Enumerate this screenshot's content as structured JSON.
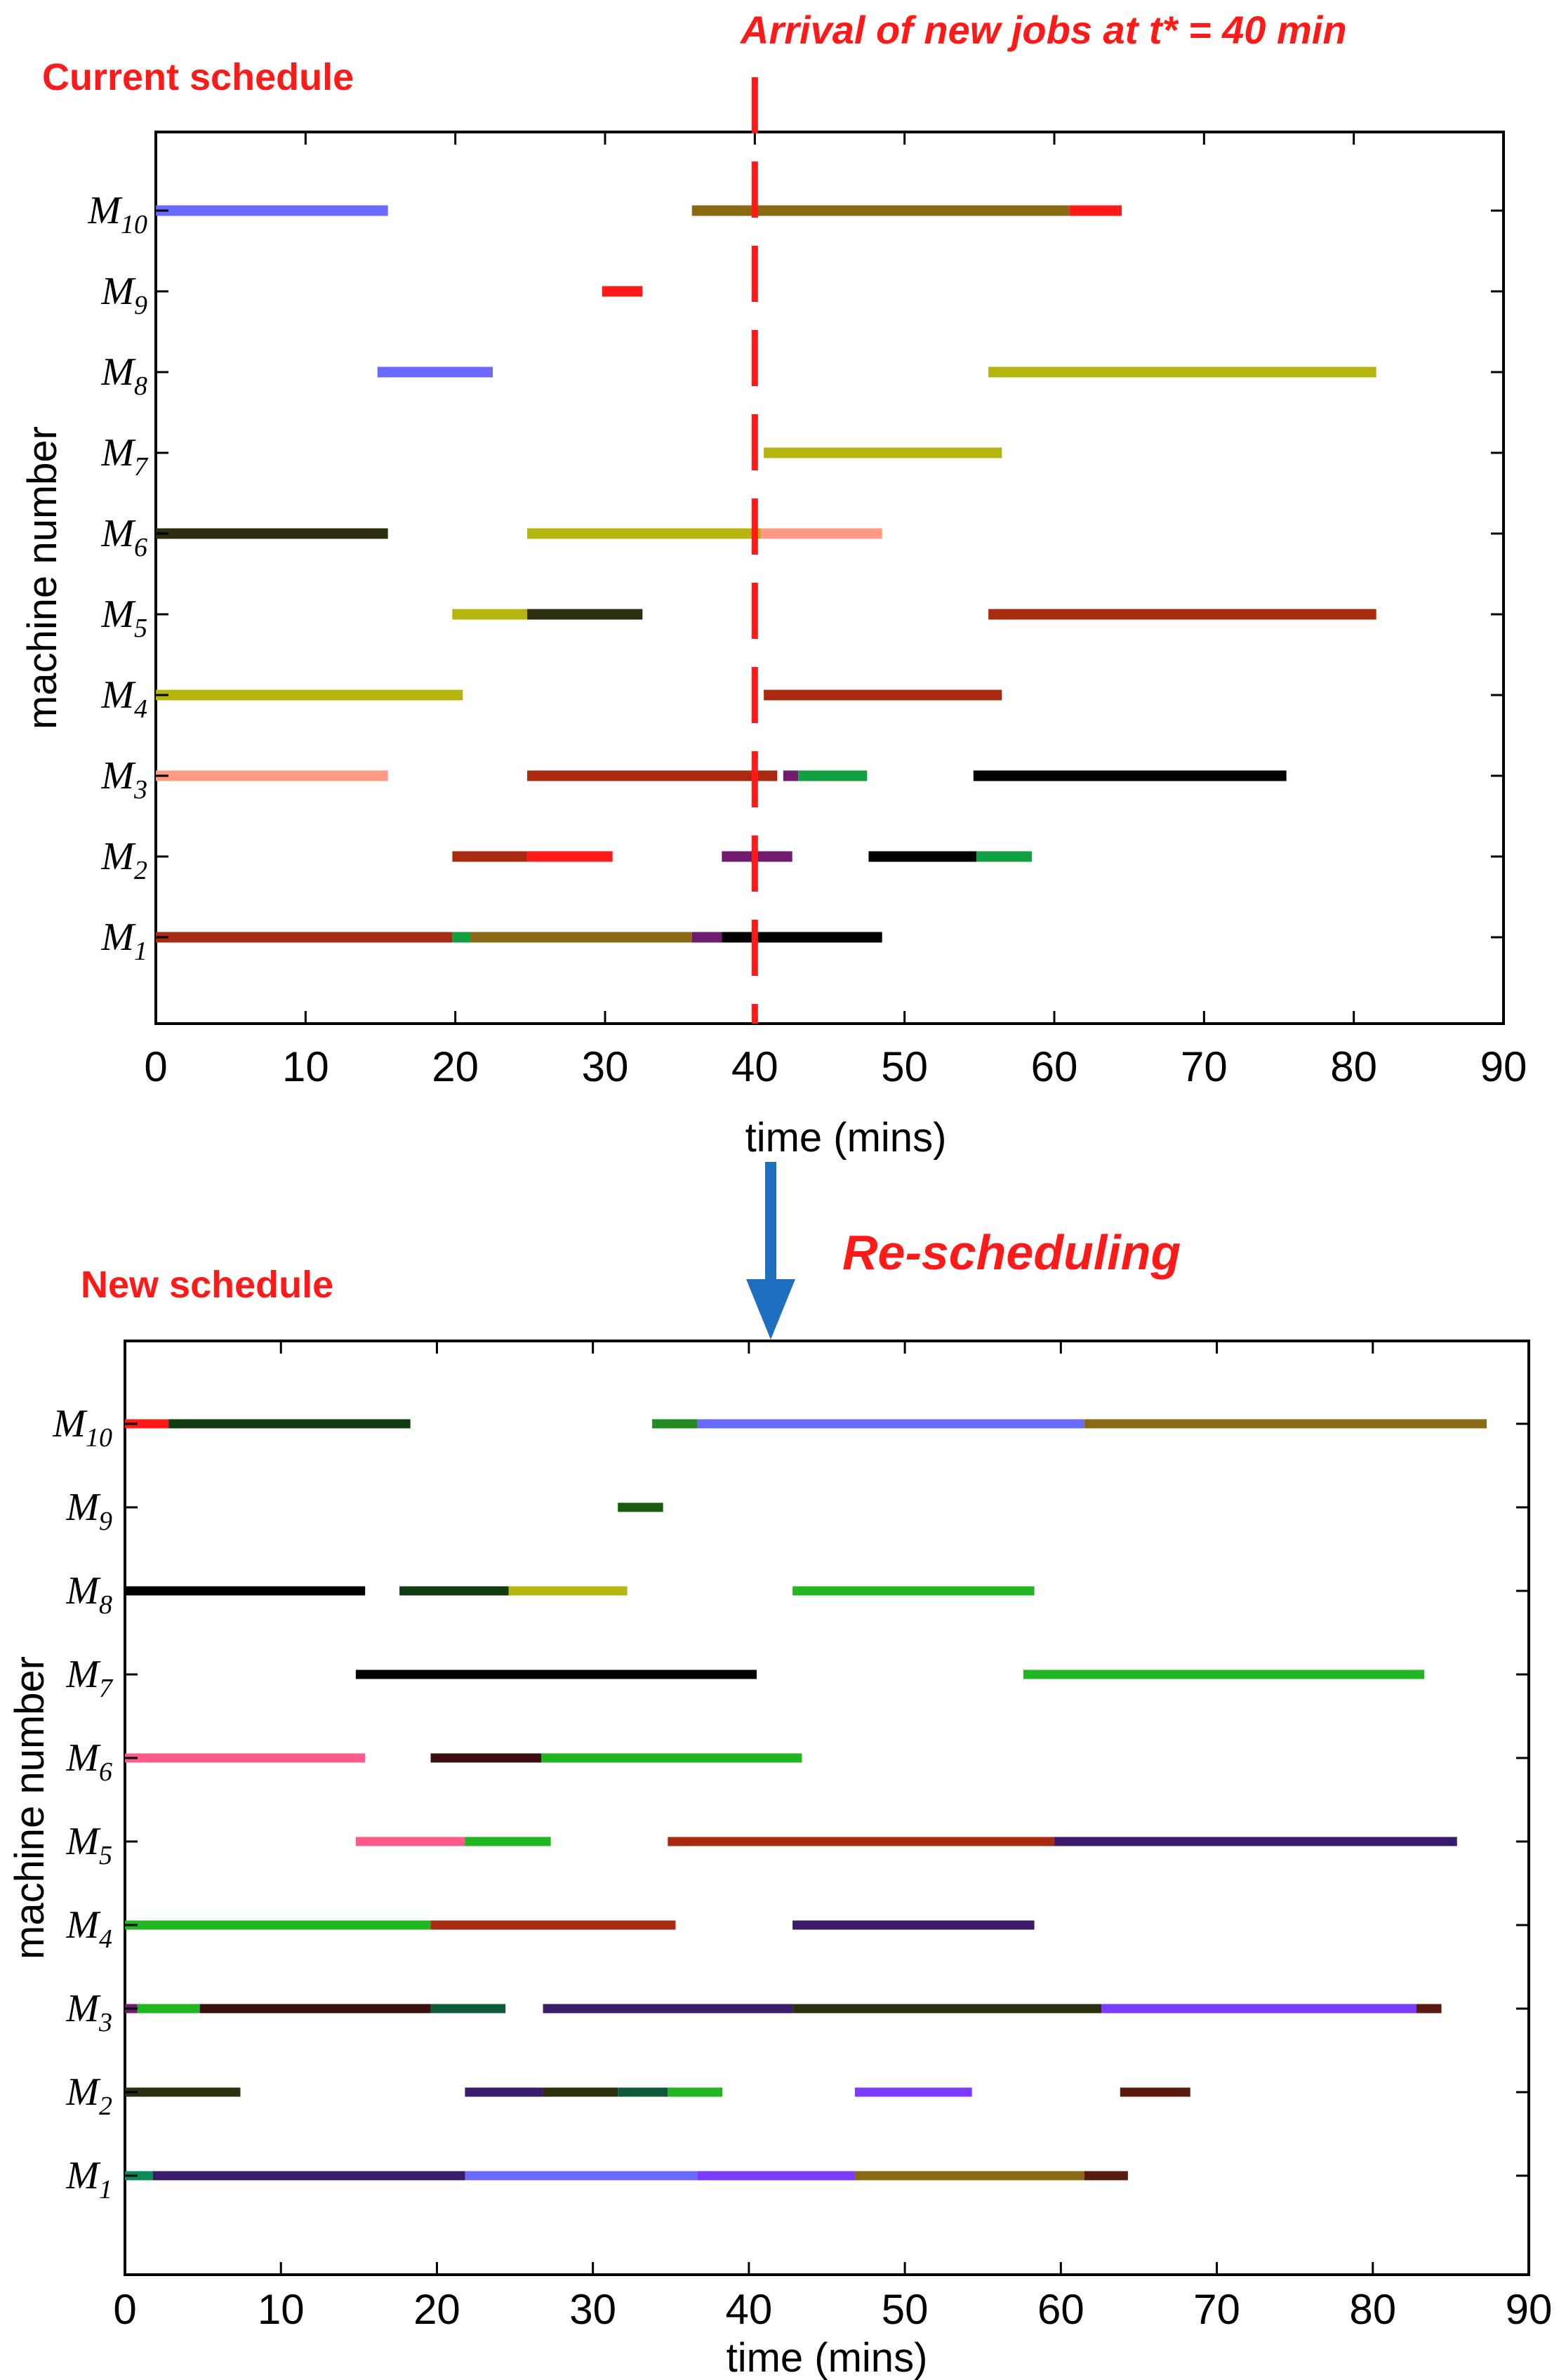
{
  "labels": {
    "current": "Current schedule",
    "arrival": "Arrival of new jobs at t* = 40 min",
    "resched": "Re-scheduling",
    "new": "New schedule"
  },
  "accent_color": "#ff1a1a",
  "arrow_color": "#1f6fc0",
  "chart_data": [
    {
      "type": "gantt",
      "title": "Current schedule",
      "xlabel": "time (mins)",
      "ylabel": "machine number",
      "xlim": [
        0,
        90
      ],
      "xticks": [
        0,
        10,
        20,
        30,
        40,
        50,
        60,
        70,
        80,
        90
      ],
      "machines": [
        "M1",
        "M2",
        "M3",
        "M4",
        "M5",
        "M6",
        "M7",
        "M8",
        "M9",
        "M10"
      ],
      "event_time": 40,
      "bars": [
        {
          "m": 10,
          "s": 0,
          "e": 15.5,
          "c": "#6a6aff"
        },
        {
          "m": 10,
          "s": 35.8,
          "e": 61,
          "c": "#8b6914"
        },
        {
          "m": 10,
          "s": 61,
          "e": 64.5,
          "c": "#ff1a1a"
        },
        {
          "m": 9,
          "s": 29.8,
          "e": 32.5,
          "c": "#ff1a1a"
        },
        {
          "m": 8,
          "s": 14.8,
          "e": 22.5,
          "c": "#6a6aff"
        },
        {
          "m": 8,
          "s": 55.6,
          "e": 81.5,
          "c": "#b5b510"
        },
        {
          "m": 7,
          "s": 40.6,
          "e": 56.5,
          "c": "#b5b510"
        },
        {
          "m": 6,
          "s": 0,
          "e": 15.5,
          "c": "#2e2e10"
        },
        {
          "m": 6,
          "s": 24.8,
          "e": 40.4,
          "c": "#b5b510"
        },
        {
          "m": 6,
          "s": 40.4,
          "e": 48.5,
          "c": "#ff9b85"
        },
        {
          "m": 5,
          "s": 19.8,
          "e": 24.8,
          "c": "#b5b510"
        },
        {
          "m": 5,
          "s": 24.8,
          "e": 32.5,
          "c": "#2e2e10"
        },
        {
          "m": 5,
          "s": 55.6,
          "e": 81.5,
          "c": "#a82a10"
        },
        {
          "m": 4,
          "s": 0,
          "e": 20.5,
          "c": "#b5b510"
        },
        {
          "m": 4,
          "s": 40.6,
          "e": 56.5,
          "c": "#a82a10"
        },
        {
          "m": 3,
          "s": 0,
          "e": 15.5,
          "c": "#ff9b85"
        },
        {
          "m": 3,
          "s": 24.8,
          "e": 41.5,
          "c": "#a82a10"
        },
        {
          "m": 3,
          "s": 41.9,
          "e": 42.9,
          "c": "#701a70"
        },
        {
          "m": 3,
          "s": 42.9,
          "e": 47.5,
          "c": "#10a040"
        },
        {
          "m": 3,
          "s": 54.6,
          "e": 75.5,
          "c": "#000000"
        },
        {
          "m": 2,
          "s": 19.8,
          "e": 24.8,
          "c": "#a82a10"
        },
        {
          "m": 2,
          "s": 24.8,
          "e": 30.5,
          "c": "#ff1a1a"
        },
        {
          "m": 2,
          "s": 37.8,
          "e": 42.5,
          "c": "#701a70"
        },
        {
          "m": 2,
          "s": 47.6,
          "e": 54.8,
          "c": "#000000"
        },
        {
          "m": 2,
          "s": 54.8,
          "e": 58.5,
          "c": "#10a040"
        },
        {
          "m": 1,
          "s": 0,
          "e": 19.8,
          "c": "#a82a10"
        },
        {
          "m": 1,
          "s": 19.8,
          "e": 21,
          "c": "#10a040"
        },
        {
          "m": 1,
          "s": 21,
          "e": 35.8,
          "c": "#8b6914"
        },
        {
          "m": 1,
          "s": 35.8,
          "e": 37.8,
          "c": "#701a70"
        },
        {
          "m": 1,
          "s": 37.8,
          "e": 48.5,
          "c": "#000000"
        }
      ]
    },
    {
      "type": "gantt",
      "title": "New schedule",
      "xlabel": "time (mins)",
      "ylabel": "machine number",
      "xlim": [
        0,
        90
      ],
      "xticks": [
        0,
        10,
        20,
        30,
        40,
        50,
        60,
        70,
        80,
        90
      ],
      "machines": [
        "M1",
        "M2",
        "M3",
        "M4",
        "M5",
        "M6",
        "M7",
        "M8",
        "M9",
        "M10"
      ],
      "bars": [
        {
          "m": 10,
          "s": 0,
          "e": 2.8,
          "c": "#ff1a1a"
        },
        {
          "m": 10,
          "s": 2.8,
          "e": 18.3,
          "c": "#103a10"
        },
        {
          "m": 10,
          "s": 33.8,
          "e": 36.7,
          "c": "#228b22"
        },
        {
          "m": 10,
          "s": 36.7,
          "e": 61.5,
          "c": "#6a6aff"
        },
        {
          "m": 10,
          "s": 61.5,
          "e": 87.3,
          "c": "#8b6914"
        },
        {
          "m": 9,
          "s": 31.6,
          "e": 34.5,
          "c": "#1a5a10"
        },
        {
          "m": 8,
          "s": 0,
          "e": 15.4,
          "c": "#000000"
        },
        {
          "m": 8,
          "s": 17.6,
          "e": 24.6,
          "c": "#103a10"
        },
        {
          "m": 8,
          "s": 24.6,
          "e": 32.2,
          "c": "#b5b510"
        },
        {
          "m": 8,
          "s": 42.8,
          "e": 58.3,
          "c": "#22b522"
        },
        {
          "m": 7,
          "s": 14.8,
          "e": 40.5,
          "c": "#000000"
        },
        {
          "m": 7,
          "s": 57.6,
          "e": 83.3,
          "c": "#22b522"
        },
        {
          "m": 6,
          "s": 0,
          "e": 15.4,
          "c": "#ff5a8a"
        },
        {
          "m": 6,
          "s": 19.6,
          "e": 26.7,
          "c": "#3a0e0e"
        },
        {
          "m": 6,
          "s": 26.7,
          "e": 43.4,
          "c": "#22b522"
        },
        {
          "m": 5,
          "s": 14.8,
          "e": 21.8,
          "c": "#ff5a8a"
        },
        {
          "m": 5,
          "s": 21.8,
          "e": 27.3,
          "c": "#22b522"
        },
        {
          "m": 5,
          "s": 34.8,
          "e": 59.6,
          "c": "#a82a10"
        },
        {
          "m": 5,
          "s": 59.6,
          "e": 85.4,
          "c": "#3a1a6a"
        },
        {
          "m": 4,
          "s": 0,
          "e": 19.6,
          "c": "#22b522"
        },
        {
          "m": 4,
          "s": 19.6,
          "e": 35.3,
          "c": "#a82a10"
        },
        {
          "m": 4,
          "s": 42.8,
          "e": 58.3,
          "c": "#3a1a6a"
        },
        {
          "m": 3,
          "s": 0,
          "e": 0.8,
          "c": "#701a70"
        },
        {
          "m": 3,
          "s": 0.8,
          "e": 4.8,
          "c": "#22b522"
        },
        {
          "m": 3,
          "s": 4.8,
          "e": 19.6,
          "c": "#3a0e0e"
        },
        {
          "m": 3,
          "s": 19.6,
          "e": 24.4,
          "c": "#0e5a3a"
        },
        {
          "m": 3,
          "s": 26.8,
          "e": 42.8,
          "c": "#3a1a6a"
        },
        {
          "m": 3,
          "s": 42.8,
          "e": 62.6,
          "c": "#2e2e10"
        },
        {
          "m": 3,
          "s": 62.6,
          "e": 82.8,
          "c": "#7a3aff"
        },
        {
          "m": 3,
          "s": 82.8,
          "e": 84.4,
          "c": "#5a1a0e"
        },
        {
          "m": 2,
          "s": 0,
          "e": 7.4,
          "c": "#2e2e10"
        },
        {
          "m": 2,
          "s": 21.8,
          "e": 26.8,
          "c": "#3a1a6a"
        },
        {
          "m": 2,
          "s": 26.8,
          "e": 31.6,
          "c": "#2e2e10"
        },
        {
          "m": 2,
          "s": 31.6,
          "e": 34.8,
          "c": "#0e5a3a"
        },
        {
          "m": 2,
          "s": 34.8,
          "e": 38.3,
          "c": "#22b522"
        },
        {
          "m": 2,
          "s": 46.8,
          "e": 54.3,
          "c": "#7a3aff"
        },
        {
          "m": 2,
          "s": 63.8,
          "e": 68.3,
          "c": "#5a1a0e"
        },
        {
          "m": 1,
          "s": 0,
          "e": 1.8,
          "c": "#0e8a5a"
        },
        {
          "m": 1,
          "s": 1.8,
          "e": 21.8,
          "c": "#3a1a6a"
        },
        {
          "m": 1,
          "s": 21.8,
          "e": 36.7,
          "c": "#6a6aff"
        },
        {
          "m": 1,
          "s": 36.7,
          "e": 46.8,
          "c": "#7a3aff"
        },
        {
          "m": 1,
          "s": 46.8,
          "e": 61.5,
          "c": "#8b6914"
        },
        {
          "m": 1,
          "s": 61.5,
          "e": 64.3,
          "c": "#5a1a0e"
        }
      ]
    }
  ]
}
